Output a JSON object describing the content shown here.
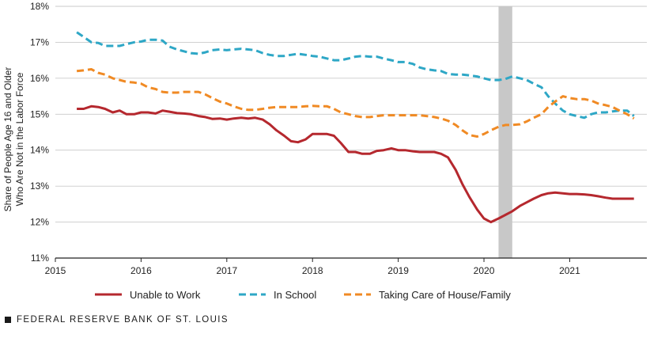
{
  "chart_data": {
    "type": "line",
    "ylabel_line1": "Share of People Age 16 and Older",
    "ylabel_line2": "Who Are Not in the Labor Force",
    "ylim": [
      11,
      18
    ],
    "yticks": [
      11,
      12,
      13,
      14,
      15,
      16,
      17,
      18
    ],
    "ytick_labels": [
      "11%",
      "12%",
      "13%",
      "14%",
      "15%",
      "16%",
      "17%",
      "18%"
    ],
    "xlim": [
      2015,
      2021.9
    ],
    "xticks": [
      2015,
      2016,
      2017,
      2018,
      2019,
      2020,
      2021
    ],
    "xtick_labels": [
      "2015",
      "2016",
      "2017",
      "2018",
      "2019",
      "2020",
      "2021"
    ],
    "grid": "horizontal",
    "shaded_region": [
      2020.17,
      2020.33
    ],
    "legend_position": "bottom",
    "series": [
      {
        "name": "Unable to Work",
        "color": "#b5282e",
        "style": "solid",
        "x": [
          2015.25,
          2015.33,
          2015.42,
          2015.5,
          2015.58,
          2015.67,
          2015.75,
          2015.83,
          2015.92,
          2016.0,
          2016.08,
          2016.17,
          2016.25,
          2016.33,
          2016.42,
          2016.5,
          2016.58,
          2016.67,
          2016.75,
          2016.83,
          2016.92,
          2017.0,
          2017.08,
          2017.17,
          2017.25,
          2017.33,
          2017.42,
          2017.5,
          2017.58,
          2017.67,
          2017.75,
          2017.83,
          2017.92,
          2018.0,
          2018.08,
          2018.17,
          2018.25,
          2018.33,
          2018.42,
          2018.5,
          2018.58,
          2018.67,
          2018.75,
          2018.83,
          2018.92,
          2019.0,
          2019.08,
          2019.17,
          2019.25,
          2019.33,
          2019.42,
          2019.5,
          2019.58,
          2019.67,
          2019.75,
          2019.83,
          2019.92,
          2020.0,
          2020.08,
          2020.17,
          2020.25,
          2020.33,
          2020.42,
          2020.5,
          2020.58,
          2020.67,
          2020.75,
          2020.83,
          2020.92,
          2021.0,
          2021.08,
          2021.17,
          2021.25,
          2021.33,
          2021.42,
          2021.5,
          2021.58,
          2021.67,
          2021.75
        ],
        "values": [
          15.15,
          15.15,
          15.22,
          15.2,
          15.15,
          15.05,
          15.1,
          15.0,
          15.0,
          15.05,
          15.05,
          15.02,
          15.1,
          15.07,
          15.03,
          15.02,
          15.0,
          14.95,
          14.92,
          14.87,
          14.88,
          14.85,
          14.88,
          14.9,
          14.88,
          14.9,
          14.85,
          14.72,
          14.55,
          14.4,
          14.25,
          14.22,
          14.3,
          14.45,
          14.45,
          14.45,
          14.4,
          14.2,
          13.95,
          13.95,
          13.9,
          13.9,
          13.98,
          14.0,
          14.05,
          14.0,
          14.0,
          13.97,
          13.95,
          13.95,
          13.95,
          13.9,
          13.8,
          13.45,
          13.05,
          12.7,
          12.35,
          12.1,
          12.0,
          12.1,
          12.2,
          12.3,
          12.45,
          12.55,
          12.65,
          12.75,
          12.8,
          12.82,
          12.8,
          12.78,
          12.78,
          12.77,
          12.75,
          12.72,
          12.68,
          12.65,
          12.65,
          12.65,
          12.65
        ]
      },
      {
        "name": "In School",
        "color": "#2ea7c6",
        "style": "dashed",
        "x": [
          2015.25,
          2015.33,
          2015.42,
          2015.5,
          2015.58,
          2015.67,
          2015.75,
          2015.83,
          2015.92,
          2016.0,
          2016.08,
          2016.17,
          2016.25,
          2016.33,
          2016.42,
          2016.5,
          2016.58,
          2016.67,
          2016.75,
          2016.83,
          2016.92,
          2017.0,
          2017.08,
          2017.17,
          2017.25,
          2017.33,
          2017.42,
          2017.5,
          2017.58,
          2017.67,
          2017.75,
          2017.83,
          2017.92,
          2018.0,
          2018.08,
          2018.17,
          2018.25,
          2018.33,
          2018.42,
          2018.5,
          2018.58,
          2018.67,
          2018.75,
          2018.83,
          2018.92,
          2019.0,
          2019.08,
          2019.17,
          2019.25,
          2019.33,
          2019.42,
          2019.5,
          2019.58,
          2019.67,
          2019.75,
          2019.83,
          2019.92,
          2020.0,
          2020.08,
          2020.17,
          2020.25,
          2020.33,
          2020.42,
          2020.5,
          2020.58,
          2020.67,
          2020.75,
          2020.83,
          2020.92,
          2021.0,
          2021.08,
          2021.17,
          2021.25,
          2021.33,
          2021.42,
          2021.5,
          2021.58,
          2021.67,
          2021.75
        ],
        "values": [
          17.28,
          17.15,
          17.0,
          16.98,
          16.9,
          16.9,
          16.9,
          16.95,
          17.0,
          17.02,
          17.07,
          17.07,
          17.05,
          16.88,
          16.8,
          16.75,
          16.7,
          16.68,
          16.72,
          16.78,
          16.8,
          16.78,
          16.8,
          16.82,
          16.8,
          16.78,
          16.7,
          16.65,
          16.62,
          16.62,
          16.65,
          16.68,
          16.65,
          16.62,
          16.6,
          16.55,
          16.5,
          16.5,
          16.55,
          16.6,
          16.62,
          16.6,
          16.6,
          16.55,
          16.5,
          16.45,
          16.45,
          16.4,
          16.3,
          16.25,
          16.22,
          16.2,
          16.12,
          16.1,
          16.1,
          16.08,
          16.05,
          16.0,
          15.95,
          15.95,
          15.98,
          16.05,
          16.0,
          15.95,
          15.85,
          15.75,
          15.5,
          15.3,
          15.1,
          15.0,
          14.95,
          14.9,
          15.0,
          15.05,
          15.05,
          15.08,
          15.1,
          15.1,
          14.95
        ]
      },
      {
        "name": "Taking Care of House/Family",
        "color": "#f08a24",
        "style": "dashed",
        "x": [
          2015.25,
          2015.33,
          2015.42,
          2015.5,
          2015.58,
          2015.67,
          2015.75,
          2015.83,
          2015.92,
          2016.0,
          2016.08,
          2016.17,
          2016.25,
          2016.33,
          2016.42,
          2016.5,
          2016.58,
          2016.67,
          2016.75,
          2016.83,
          2016.92,
          2017.0,
          2017.08,
          2017.17,
          2017.25,
          2017.33,
          2017.42,
          2017.5,
          2017.58,
          2017.67,
          2017.75,
          2017.83,
          2017.92,
          2018.0,
          2018.08,
          2018.17,
          2018.25,
          2018.33,
          2018.42,
          2018.5,
          2018.58,
          2018.67,
          2018.75,
          2018.83,
          2018.92,
          2019.0,
          2019.08,
          2019.17,
          2019.25,
          2019.33,
          2019.42,
          2019.5,
          2019.58,
          2019.67,
          2019.75,
          2019.83,
          2019.92,
          2020.0,
          2020.08,
          2020.17,
          2020.25,
          2020.33,
          2020.42,
          2020.5,
          2020.58,
          2020.67,
          2020.75,
          2020.83,
          2020.92,
          2021.0,
          2021.08,
          2021.17,
          2021.25,
          2021.33,
          2021.42,
          2021.5,
          2021.58,
          2021.67,
          2021.75
        ],
        "values": [
          16.2,
          16.22,
          16.25,
          16.15,
          16.1,
          16.0,
          15.95,
          15.9,
          15.88,
          15.85,
          15.75,
          15.7,
          15.62,
          15.6,
          15.6,
          15.62,
          15.62,
          15.62,
          15.55,
          15.45,
          15.35,
          15.3,
          15.22,
          15.15,
          15.12,
          15.12,
          15.15,
          15.18,
          15.2,
          15.2,
          15.2,
          15.2,
          15.22,
          15.23,
          15.22,
          15.22,
          15.15,
          15.05,
          15.0,
          14.95,
          14.92,
          14.92,
          14.95,
          14.97,
          14.97,
          14.97,
          14.97,
          14.97,
          14.97,
          14.95,
          14.92,
          14.88,
          14.82,
          14.7,
          14.55,
          14.42,
          14.38,
          14.45,
          14.55,
          14.65,
          14.7,
          14.7,
          14.72,
          14.8,
          14.9,
          15.0,
          15.2,
          15.35,
          15.5,
          15.45,
          15.42,
          15.42,
          15.38,
          15.3,
          15.25,
          15.2,
          15.1,
          15.0,
          14.88
        ]
      }
    ]
  },
  "footer": {
    "text": "FEDERAL RESERVE BANK OF ST. LOUIS"
  }
}
